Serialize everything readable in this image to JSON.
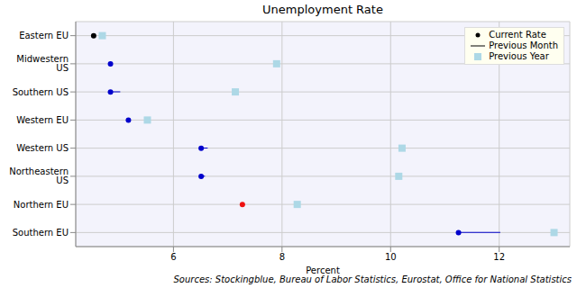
{
  "chart_data": {
    "type": "dot",
    "title": "Unemployment Rate",
    "x_label": "Percent",
    "annotation": "Sources: Stockingblue, Bureau of Labor Statistics, Eurostat, Office for National Statistics",
    "orientation": "horizontal",
    "grid": true,
    "legend": "top-right",
    "categories": [
      "Eastern EU",
      "Midwestern US",
      "Southern US",
      "Western EU",
      "Western US",
      "Northeastern US",
      "Northern EU",
      "Southern EU"
    ],
    "series": [
      {
        "name": "Current Rate",
        "color": "#0000cc",
        "marker": "circle",
        "colors": [
          "#000000",
          "#0000cc",
          "#0000cc",
          "#0000cc",
          "#0000cc",
          "#0000cc",
          "#ee1111",
          "#0000cc"
        ],
        "values": [
          4.53,
          4.84,
          4.84,
          5.17,
          6.51,
          6.51,
          7.27,
          11.25
        ]
      },
      {
        "name": "Previous Month",
        "color": "#0000cc",
        "marker": "line",
        "values": [
          4.53,
          4.84,
          5.02,
          5.17,
          6.63,
          6.58,
          7.27,
          12.02
        ]
      },
      {
        "name": "Previous Year",
        "color": "#add8e6",
        "marker": "square",
        "values": [
          4.69,
          7.9,
          7.14,
          5.52,
          10.21,
          10.15,
          8.28,
          13.01
        ]
      }
    ],
    "xlim": [
      4.2,
      13.3
    ],
    "xticks": [
      6,
      8,
      10,
      12
    ]
  }
}
